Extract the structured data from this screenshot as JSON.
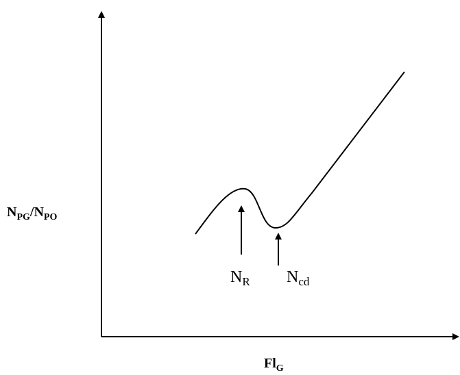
{
  "y_axis_label": [
    {
      "base": "N",
      "sub": "PG"
    },
    {
      "base": "/N",
      "sub": "PO"
    }
  ],
  "x_axis_label": {
    "base": "Fl",
    "sub": "G"
  },
  "markers": [
    {
      "base": "N",
      "sub": "R"
    },
    {
      "base": "N",
      "sub": "cd"
    }
  ]
}
